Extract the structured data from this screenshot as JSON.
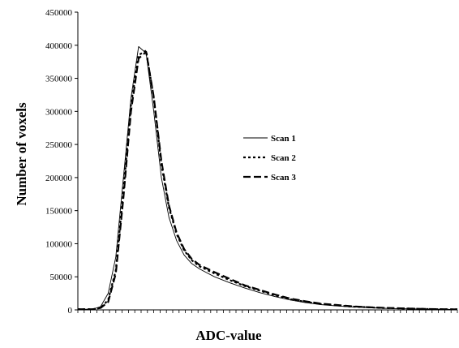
{
  "chart_data": {
    "type": "line",
    "title": "",
    "xlabel": "ADC-value",
    "ylabel": "Number of voxels",
    "ylim": [
      0,
      450000
    ],
    "xlim": [
      0,
      50
    ],
    "x_tick_labels": "none (unlabeled tick marks)",
    "y_ticks": [
      0,
      50000,
      100000,
      150000,
      200000,
      250000,
      300000,
      350000,
      400000,
      450000
    ],
    "y_tick_labels": [
      "0",
      "50000",
      "100000",
      "150000",
      "200000",
      "250000",
      "300000",
      "350000",
      "400000",
      "450000"
    ],
    "grid": false,
    "legend_position": "right",
    "series": [
      {
        "name": "Scan 1",
        "style": "solid-thin",
        "x": [
          0,
          2,
          3,
          4,
          5,
          6,
          7,
          8,
          9,
          10,
          11,
          12,
          13,
          14,
          15,
          16,
          18,
          20,
          22,
          24,
          26,
          28,
          30,
          32,
          34,
          36,
          38,
          40,
          42,
          44,
          46,
          48,
          50
        ],
        "values": [
          1000,
          1000,
          5000,
          25000,
          80000,
          200000,
          320000,
          398000,
          388000,
          300000,
          200000,
          140000,
          105000,
          83000,
          70000,
          62000,
          50000,
          41000,
          33000,
          26000,
          20000,
          15000,
          11000,
          8000,
          6000,
          4500,
          3500,
          2500,
          2000,
          1500,
          1000,
          800,
          600
        ]
      },
      {
        "name": "Scan 2",
        "style": "dotted-bold",
        "x": [
          0,
          2,
          3,
          4,
          5,
          6,
          7,
          8,
          9,
          10,
          11,
          12,
          13,
          14,
          15,
          16,
          18,
          20,
          22,
          24,
          26,
          28,
          30,
          32,
          34,
          36,
          38,
          40,
          42,
          44,
          46,
          48,
          50
        ],
        "values": [
          1000,
          1000,
          3000,
          15000,
          60000,
          180000,
          310000,
          385000,
          392000,
          320000,
          220000,
          155000,
          115000,
          90000,
          75000,
          66000,
          55000,
          45000,
          36000,
          29000,
          22000,
          16000,
          12000,
          9000,
          7000,
          5000,
          4000,
          3000,
          2500,
          1800,
          1200,
          900,
          700
        ]
      },
      {
        "name": "Scan 3",
        "style": "dashed-bold",
        "x": [
          0,
          2,
          3,
          4,
          5,
          6,
          7,
          8,
          9,
          10,
          11,
          12,
          13,
          14,
          15,
          16,
          18,
          20,
          22,
          24,
          26,
          28,
          30,
          32,
          34,
          36,
          38,
          40,
          42,
          44,
          46,
          48,
          50
        ],
        "values": [
          1000,
          1000,
          3000,
          12000,
          55000,
          170000,
          300000,
          380000,
          390000,
          322000,
          225000,
          158000,
          117000,
          92000,
          77000,
          68000,
          57000,
          47000,
          37000,
          30000,
          23000,
          17000,
          13000,
          9500,
          7500,
          5500,
          4200,
          3200,
          2600,
          1900,
          1300,
          950,
          750
        ]
      }
    ]
  }
}
